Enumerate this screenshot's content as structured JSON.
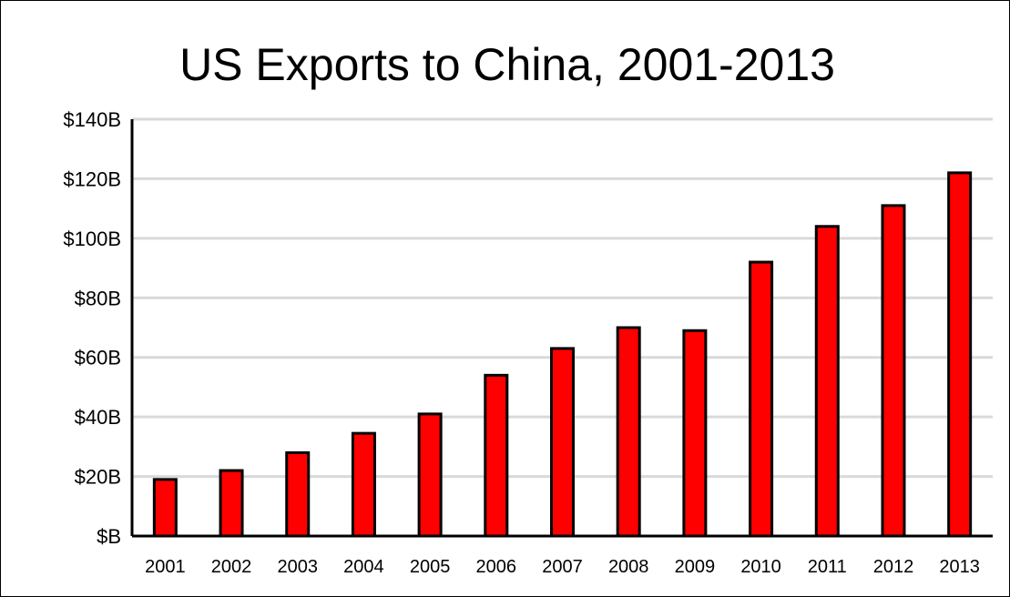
{
  "chart_data": {
    "type": "bar",
    "title": "US Exports to China, 2001-2013",
    "categories": [
      "2001",
      "2002",
      "2003",
      "2004",
      "2005",
      "2006",
      "2007",
      "2008",
      "2009",
      "2010",
      "2011",
      "2012",
      "2013"
    ],
    "values": [
      19,
      22,
      28,
      34.5,
      41,
      54,
      63,
      70,
      69,
      92,
      104,
      111,
      122
    ],
    "ylim": [
      0,
      140
    ],
    "yticks": [
      0,
      20,
      40,
      60,
      80,
      100,
      120,
      140
    ],
    "ytick_labels": [
      "$B",
      "$20B",
      "$40B",
      "$60B",
      "$80B",
      "$100B",
      "$120B",
      "$140B"
    ],
    "grid": true,
    "legend": "none",
    "colors": {
      "bar_fill": "#ff0000",
      "bar_stroke": "#000000",
      "grid": "#d9d9d9"
    }
  }
}
